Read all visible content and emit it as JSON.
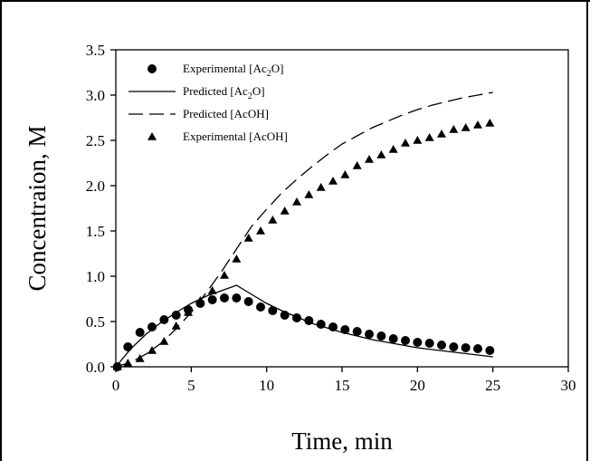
{
  "chart_data": {
    "type": "scatter",
    "xlabel": "Time, min",
    "ylabel": "Concentraion, M",
    "xlim": [
      0,
      30
    ],
    "ylim": [
      0,
      3.5
    ],
    "xticks": [
      "0",
      "5",
      "10",
      "15",
      "20",
      "25",
      "30"
    ],
    "yticks": [
      "0.0",
      "0.5",
      "1.0",
      "1.5",
      "2.0",
      "2.5",
      "3.0",
      "3.5"
    ],
    "grid": false,
    "legend_position": "top-left",
    "series": [
      {
        "name": "Experimental [Ac2O]",
        "legend_main": "Experimental [Ac",
        "legend_sub": "2",
        "legend_tail": "O]",
        "style": "circle",
        "x": [
          0.1,
          0.8,
          1.6,
          2.4,
          3.2,
          4.0,
          4.8,
          5.6,
          6.4,
          7.2,
          8.0,
          8.8,
          9.6,
          10.4,
          11.2,
          12.0,
          12.8,
          13.6,
          14.4,
          15.2,
          16.0,
          16.8,
          17.6,
          18.4,
          19.2,
          20.0,
          20.8,
          21.6,
          22.4,
          23.2,
          24.0,
          24.8
        ],
        "y": [
          0.0,
          0.22,
          0.38,
          0.44,
          0.52,
          0.57,
          0.63,
          0.7,
          0.74,
          0.76,
          0.76,
          0.72,
          0.66,
          0.62,
          0.57,
          0.54,
          0.51,
          0.47,
          0.44,
          0.41,
          0.39,
          0.36,
          0.34,
          0.31,
          0.29,
          0.27,
          0.26,
          0.24,
          0.22,
          0.21,
          0.2,
          0.18
        ]
      },
      {
        "name": "Predicted [Ac2O]",
        "legend_main": "Predicted [Ac",
        "legend_sub": "2",
        "legend_tail": "O]",
        "style": "solid",
        "x": [
          0,
          1,
          2,
          3,
          4,
          5,
          6,
          7,
          8,
          9,
          10,
          11,
          12,
          13,
          14,
          15,
          16,
          17,
          18,
          19,
          20,
          21,
          22,
          23,
          24,
          25
        ],
        "y": [
          0.0,
          0.2,
          0.36,
          0.49,
          0.6,
          0.7,
          0.78,
          0.84,
          0.9,
          0.8,
          0.7,
          0.62,
          0.55,
          0.48,
          0.43,
          0.38,
          0.34,
          0.3,
          0.27,
          0.24,
          0.21,
          0.19,
          0.17,
          0.15,
          0.13,
          0.11
        ]
      },
      {
        "name": "Predicted [AcOH]",
        "legend_main": "Predicted [AcOH]",
        "legend_sub": "",
        "legend_tail": "",
        "style": "dashed",
        "x": [
          0,
          1,
          2,
          3,
          4,
          5,
          6,
          7,
          8,
          9,
          10,
          11,
          12,
          13,
          14,
          15,
          16,
          17,
          18,
          19,
          20,
          21,
          22,
          23,
          24,
          25
        ],
        "y": [
          0.0,
          0.05,
          0.14,
          0.26,
          0.42,
          0.6,
          0.82,
          1.05,
          1.3,
          1.55,
          1.74,
          1.92,
          2.07,
          2.21,
          2.34,
          2.46,
          2.55,
          2.64,
          2.71,
          2.78,
          2.84,
          2.89,
          2.93,
          2.97,
          3.0,
          3.03
        ]
      },
      {
        "name": "Experimental [AcOH]",
        "legend_main": "Experimental [AcOH]",
        "legend_sub": "",
        "legend_tail": "",
        "style": "triangle",
        "x": [
          0.1,
          0.8,
          1.6,
          2.4,
          3.2,
          4.0,
          4.8,
          5.6,
          6.4,
          7.2,
          8.0,
          8.8,
          9.6,
          10.4,
          11.2,
          12.0,
          12.8,
          13.6,
          14.4,
          15.2,
          16.0,
          16.8,
          17.6,
          18.4,
          19.2,
          20.0,
          20.8,
          21.6,
          22.4,
          23.2,
          24.0,
          24.8
        ],
        "y": [
          0.0,
          0.04,
          0.09,
          0.18,
          0.28,
          0.45,
          0.6,
          0.73,
          0.84,
          1.01,
          1.19,
          1.42,
          1.5,
          1.62,
          1.72,
          1.82,
          1.9,
          1.98,
          2.05,
          2.12,
          2.22,
          2.29,
          2.34,
          2.4,
          2.47,
          2.5,
          2.53,
          2.57,
          2.62,
          2.64,
          2.67,
          2.69
        ]
      }
    ]
  }
}
